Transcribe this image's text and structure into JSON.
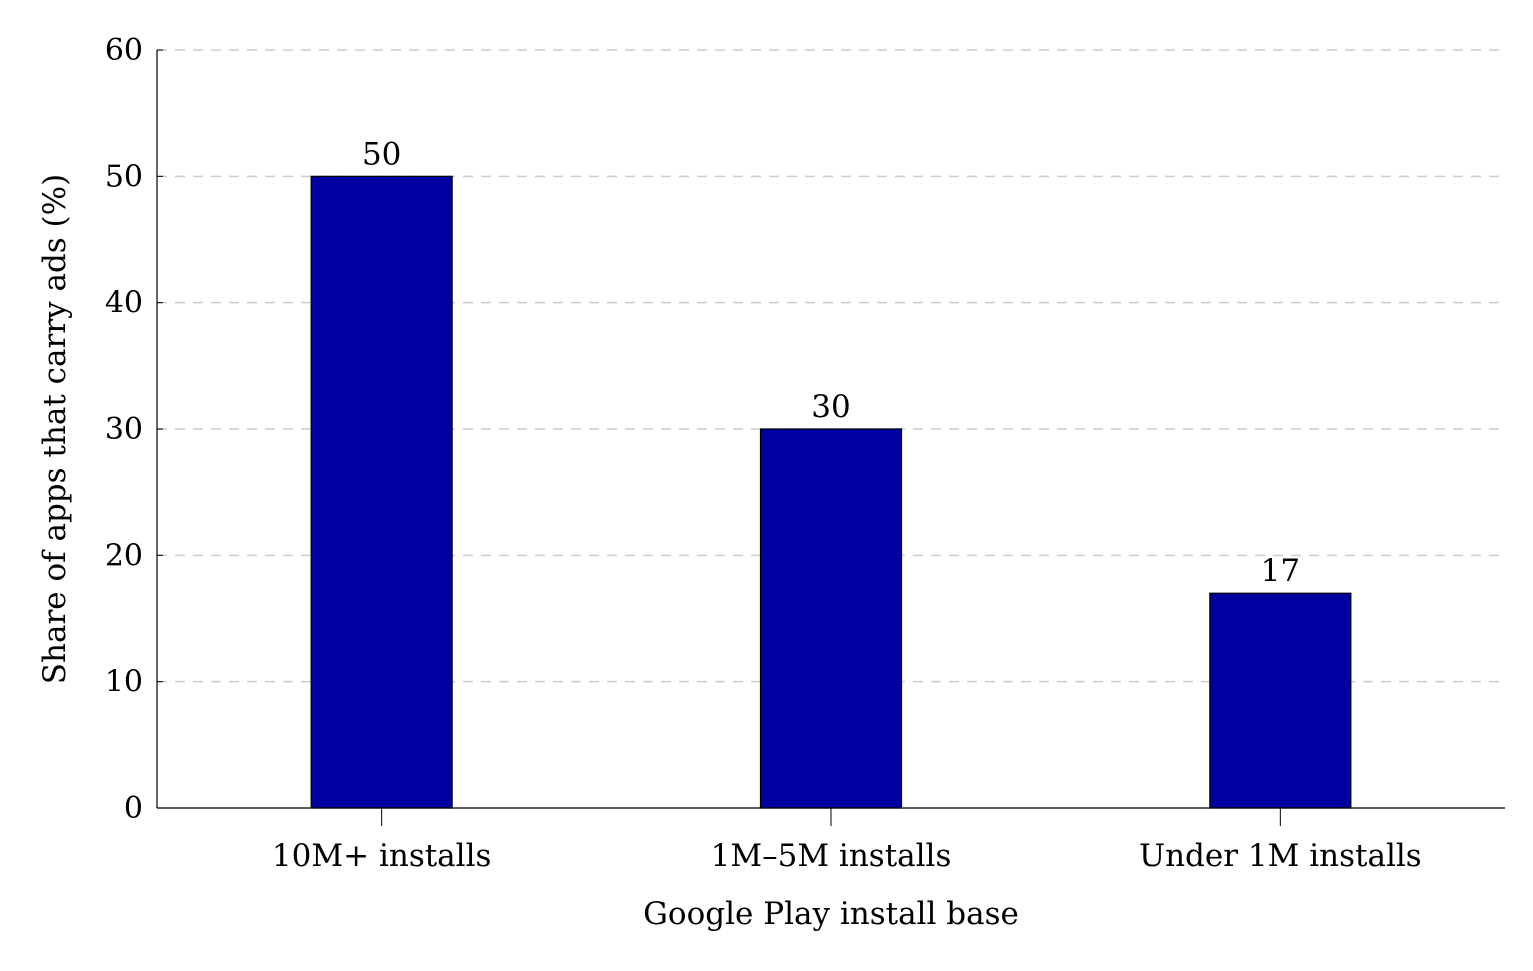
{
  "chart_data": {
    "type": "bar",
    "title": "",
    "xlabel": "Google Play install base",
    "ylabel": "Share of apps that carry ads (%)",
    "categories": [
      "10M+ installs",
      "1M–5M installs",
      "Under 1M installs"
    ],
    "values": [
      50,
      30,
      17
    ],
    "data_labels": [
      "50",
      "30",
      "17"
    ],
    "ylim": [
      0,
      60
    ],
    "yticks": [
      0,
      10,
      20,
      30,
      40,
      50,
      60
    ],
    "grid": "horizontal dashed",
    "bar_color": "#0000a0",
    "legend": "none"
  }
}
